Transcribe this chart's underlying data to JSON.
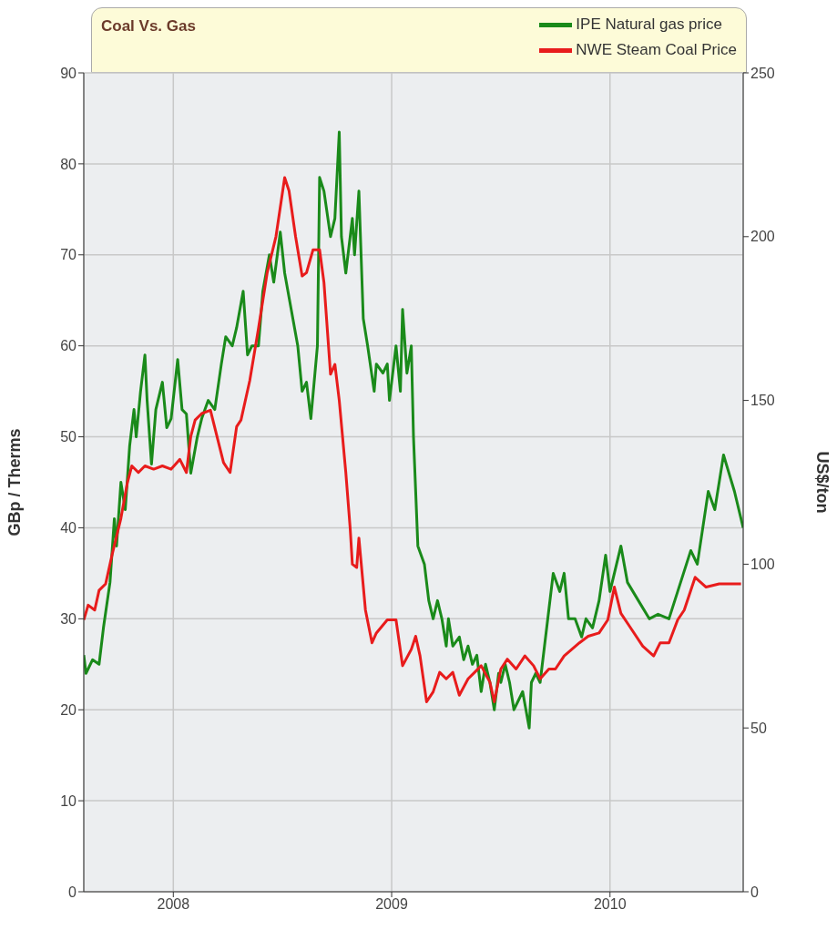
{
  "chart_data": {
    "type": "line",
    "title": "Coal Vs. Gas",
    "ylabel": "GBp / Therms",
    "y2label": "US$/ton",
    "xlim": [
      2007.59,
      2010.61
    ],
    "xticks": [
      2008,
      2009,
      2010
    ],
    "ylim": [
      0,
      90
    ],
    "yticks": [
      0,
      10,
      20,
      30,
      40,
      50,
      60,
      70,
      80,
      90
    ],
    "y2lim": [
      0,
      250
    ],
    "y2ticks": [
      0,
      50,
      100,
      150,
      200,
      250
    ],
    "grid": true,
    "legend": "top right",
    "marker": "none",
    "line_style": "solid",
    "series": [
      {
        "name": "IPE Natural gas price",
        "color": "#1a8a1a",
        "x": [
          2007.59,
          2007.6,
          2007.63,
          2007.66,
          2007.68,
          2007.71,
          2007.73,
          2007.74,
          2007.76,
          2007.78,
          2007.8,
          2007.82,
          2007.83,
          2007.85,
          2007.87,
          2007.88,
          2007.9,
          2007.92,
          2007.95,
          2007.97,
          2007.99,
          2008.02,
          2008.04,
          2008.06,
          2008.08,
          2008.11,
          2008.13,
          2008.16,
          2008.19,
          2008.22,
          2008.24,
          2008.27,
          2008.29,
          2008.32,
          2008.34,
          2008.36,
          2008.39,
          2008.41,
          2008.44,
          2008.46,
          2008.49,
          2008.51,
          2008.54,
          2008.57,
          2008.59,
          2008.61,
          2008.63,
          2008.66,
          2008.67,
          2008.69,
          2008.72,
          2008.74,
          2008.76,
          2008.77,
          2008.79,
          2008.82,
          2008.83,
          2008.85,
          2008.87,
          2008.89,
          2008.92,
          2008.93,
          2008.96,
          2008.98,
          2008.99,
          2009.02,
          2009.04,
          2009.05,
          2009.07,
          2009.09,
          2009.1,
          2009.12,
          2009.15,
          2009.17,
          2009.19,
          2009.21,
          2009.23,
          2009.25,
          2009.26,
          2009.28,
          2009.31,
          2009.33,
          2009.35,
          2009.37,
          2009.39,
          2009.41,
          2009.43,
          2009.45,
          2009.47,
          2009.49,
          2009.5,
          2009.52,
          2009.54,
          2009.56,
          2009.58,
          2009.6,
          2009.63,
          2009.64,
          2009.66,
          2009.68,
          2009.7,
          2009.74,
          2009.77,
          2009.79,
          2009.81,
          2009.84,
          2009.87,
          2009.89,
          2009.92,
          2009.95,
          2009.98,
          2010,
          2010.05,
          2010.08,
          2010.13,
          2010.18,
          2010.22,
          2010.27,
          2010.31,
          2010.37,
          2010.4,
          2010.45,
          2010.48,
          2010.52,
          2010.57,
          2010.61
        ],
        "values": [
          26,
          24,
          25.5,
          25,
          29,
          34,
          41,
          38,
          45,
          42,
          49,
          53,
          50,
          55,
          59,
          54,
          47,
          53,
          56,
          51,
          52,
          58.5,
          53,
          52.5,
          46,
          50,
          52,
          54,
          53,
          58,
          61,
          60,
          62,
          66,
          59,
          60,
          60,
          66,
          70,
          67,
          72.5,
          68,
          64,
          60,
          55,
          56,
          52,
          60,
          78.5,
          77,
          72,
          74,
          83.5,
          72,
          68,
          74,
          70,
          77,
          63,
          60,
          55,
          58,
          57,
          58,
          54,
          60,
          55,
          64,
          57,
          60,
          50,
          38,
          36,
          32,
          30,
          32,
          30,
          27,
          30,
          27,
          28,
          25.5,
          27,
          25,
          26,
          22,
          25,
          23,
          20,
          24,
          23,
          25,
          23,
          20,
          21,
          22,
          18,
          23,
          24,
          23,
          27,
          35,
          33,
          35,
          30,
          30,
          28,
          30,
          29,
          32,
          37,
          33,
          38,
          34,
          32,
          30,
          30.5,
          30,
          33,
          37.5,
          36,
          44,
          42,
          48,
          44,
          40
        ]
      },
      {
        "name": "NWE Steam Coal Price",
        "color": "#e81c1c",
        "axis": "y2",
        "x": [
          2007.59,
          2007.61,
          2007.64,
          2007.66,
          2007.69,
          2007.72,
          2007.76,
          2007.79,
          2007.81,
          2007.84,
          2007.87,
          2007.91,
          2007.95,
          2007.99,
          2008.03,
          2008.06,
          2008.08,
          2008.1,
          2008.13,
          2008.17,
          2008.2,
          2008.23,
          2008.26,
          2008.29,
          2008.31,
          2008.35,
          2008.39,
          2008.43,
          2008.47,
          2008.51,
          2008.53,
          2008.56,
          2008.59,
          2008.61,
          2008.64,
          2008.67,
          2008.69,
          2008.72,
          2008.74,
          2008.76,
          2008.79,
          2008.81,
          2008.82,
          2008.84,
          2008.85,
          2008.88,
          2008.91,
          2008.93,
          2008.98,
          2009.02,
          2009.05,
          2009.09,
          2009.11,
          2009.13,
          2009.16,
          2009.19,
          2009.22,
          2009.25,
          2009.28,
          2009.31,
          2009.35,
          2009.38,
          2009.41,
          2009.45,
          2009.47,
          2009.5,
          2009.53,
          2009.57,
          2009.61,
          2009.65,
          2009.68,
          2009.72,
          2009.75,
          2009.79,
          2009.86,
          2009.9,
          2009.95,
          2009.99,
          2010.02,
          2010.05,
          2010.09,
          2010.15,
          2010.2,
          2010.23,
          2010.27,
          2010.31,
          2010.34,
          2010.39,
          2010.44,
          2010.5,
          2010.6
        ],
        "values": [
          83,
          87.5,
          86,
          92,
          94,
          103,
          114,
          125,
          130,
          128,
          130,
          129,
          130,
          129,
          132,
          128,
          139,
          144,
          146,
          147,
          139,
          131,
          128,
          142,
          144,
          156,
          172,
          189,
          200,
          218,
          214,
          200,
          188,
          189,
          196,
          196,
          186,
          158,
          161,
          150,
          128,
          111,
          100,
          99,
          108,
          86,
          76,
          79,
          83,
          83,
          69,
          74,
          78,
          72,
          58,
          61,
          67,
          65,
          67,
          60,
          65,
          67,
          69,
          64,
          58,
          68,
          71,
          68,
          72,
          69,
          65,
          68,
          68,
          72,
          76,
          78,
          79,
          83,
          93,
          85,
          81,
          75,
          72,
          76,
          76,
          83,
          86,
          96,
          93,
          94,
          94
        ]
      }
    ]
  }
}
